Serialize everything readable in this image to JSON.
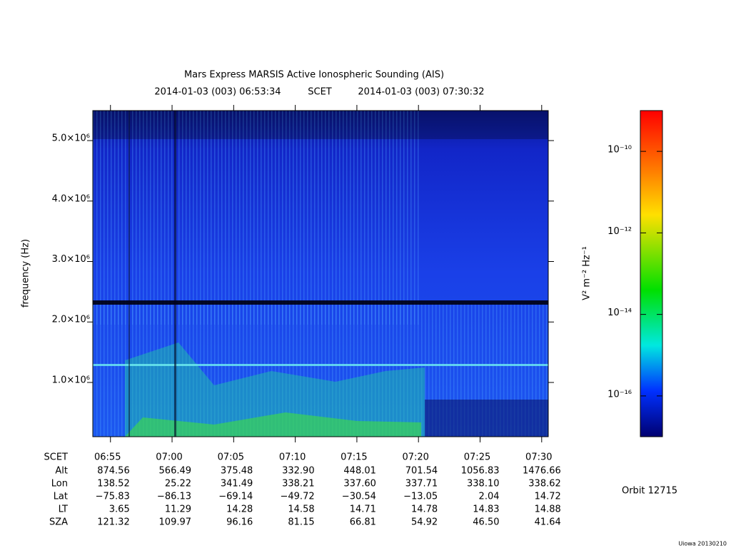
{
  "chart_data": {
    "type": "spectrogram",
    "title": "Mars Express MARSIS Active Ionospheric Sounding (AIS)",
    "start_time": "2014-01-03 (003) 06:53:34",
    "time_system": "SCET",
    "end_time": "2014-01-03 (003) 07:30:32",
    "y_label": "frequency (Hz)",
    "ylim": [
      103000,
      5496000
    ],
    "yticks": [
      {
        "value": 1000000,
        "label": "1.0×10⁶"
      },
      {
        "value": 2000000,
        "label": "2.0×10⁶"
      },
      {
        "value": 3000000,
        "label": "3.0×10⁶"
      },
      {
        "value": 4000000,
        "label": "4.0×10⁶"
      },
      {
        "value": 5000000,
        "label": "5.0×10⁶"
      }
    ],
    "xlim": [
      24814,
      27032
    ],
    "x_row_label": "SCET",
    "xticks": [
      {
        "value": 24900,
        "label": "06:55"
      },
      {
        "value": 25200,
        "label": "07:00"
      },
      {
        "value": 25500,
        "label": "07:05"
      },
      {
        "value": 25800,
        "label": "07:10"
      },
      {
        "value": 26100,
        "label": "07:15"
      },
      {
        "value": 26400,
        "label": "07:20"
      },
      {
        "value": 26700,
        "label": "07:25"
      },
      {
        "value": 27000,
        "label": "07:30"
      }
    ],
    "ephemeris": [
      {
        "name": "Alt",
        "values": [
          874.56,
          566.49,
          375.48,
          332.9,
          448.01,
          701.54,
          1056.83,
          1476.66
        ],
        "value_labels": [
          "874.56",
          "566.49",
          "375.48",
          "332.90",
          "448.01",
          "701.54",
          "1056.83",
          "1476.66"
        ]
      },
      {
        "name": "Lon",
        "values": [
          138.52,
          25.22,
          341.49,
          338.21,
          337.6,
          337.71,
          338.1,
          338.62
        ],
        "value_labels": [
          "138.52",
          "25.22",
          "341.49",
          "338.21",
          "337.60",
          "337.71",
          "338.10",
          "338.62"
        ]
      },
      {
        "name": "Lat",
        "values": [
          -75.83,
          -86.13,
          -69.14,
          -49.72,
          -30.54,
          -13.05,
          2.04,
          14.72
        ],
        "value_labels": [
          "−75.83",
          "−86.13",
          "−69.14",
          "−49.72",
          "−30.54",
          "−13.05",
          "2.04",
          "14.72"
        ]
      },
      {
        "name": "LT",
        "values": [
          3.65,
          11.29,
          14.28,
          14.58,
          14.71,
          14.78,
          14.83,
          14.88
        ],
        "value_labels": [
          "3.65",
          "11.29",
          "14.28",
          "14.58",
          "14.71",
          "14.78",
          "14.83",
          "14.88"
        ]
      },
      {
        "name": "SZA",
        "values": [
          121.32,
          109.97,
          96.16,
          81.15,
          66.81,
          54.92,
          46.5,
          41.64
        ],
        "value_labels": [
          "121.32",
          "109.97",
          "96.16",
          "81.15",
          "66.81",
          "54.92",
          "46.50",
          "41.64"
        ]
      }
    ],
    "colorbar": {
      "label": "V² m⁻² Hz⁻¹",
      "log_scale": true,
      "zlim": [
        1e-17,
        1e-09
      ],
      "ticks": [
        {
          "value": 1e-10,
          "label": "10⁻¹⁰"
        },
        {
          "value": 1e-12,
          "label": "10⁻¹²"
        },
        {
          "value": 1e-14,
          "label": "10⁻¹⁴"
        },
        {
          "value": 1e-16,
          "label": "10⁻¹⁶"
        }
      ]
    },
    "orbit": "Orbit 12715",
    "credit": "Uiowa 20130210"
  }
}
